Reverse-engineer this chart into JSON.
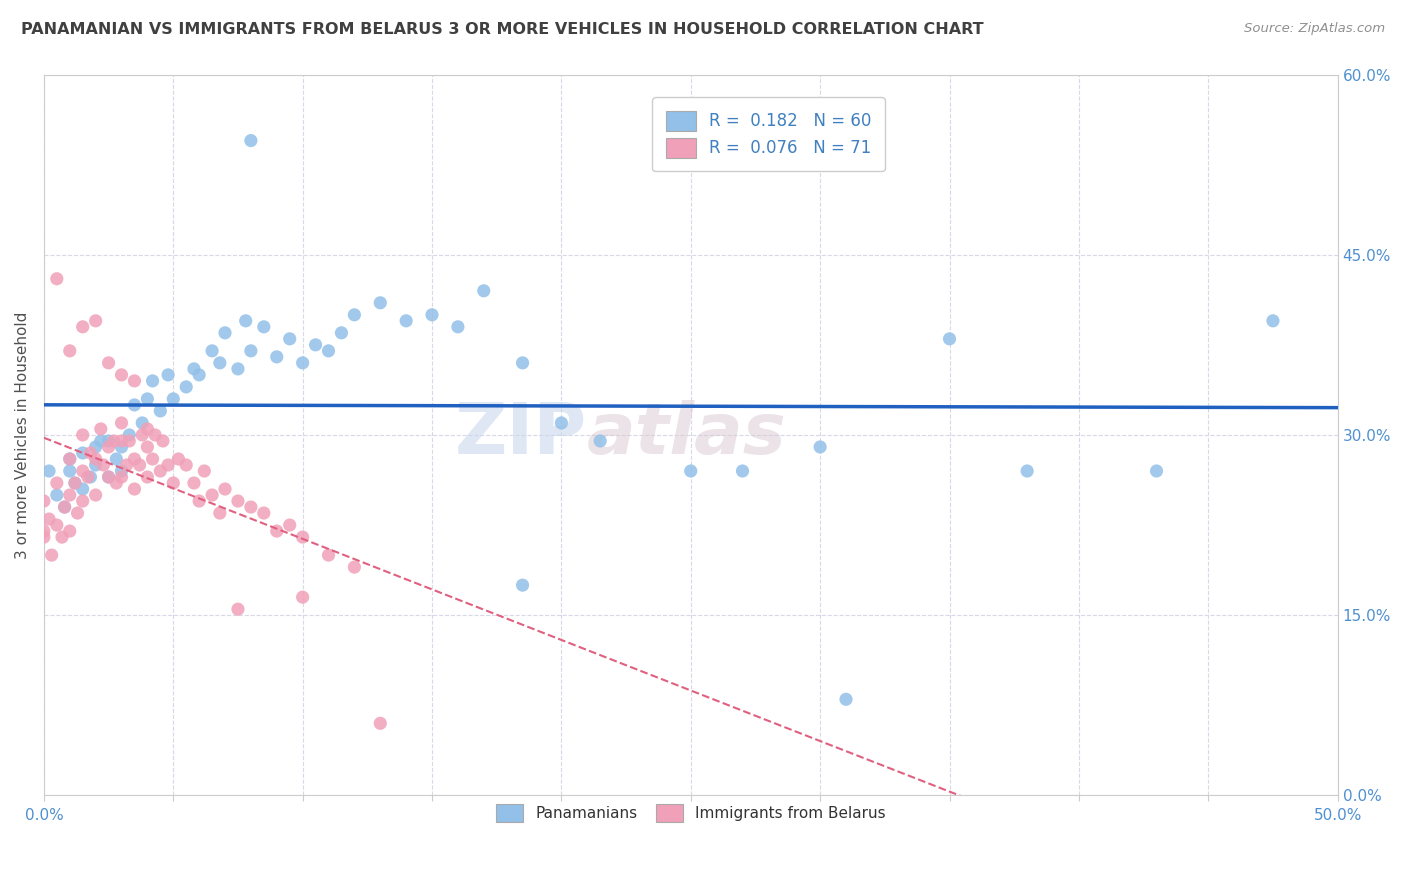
{
  "title": "PANAMANIAN VS IMMIGRANTS FROM BELARUS 3 OR MORE VEHICLES IN HOUSEHOLD CORRELATION CHART",
  "source": "Source: ZipAtlas.com",
  "ylabel": "3 or more Vehicles in Household",
  "watermark_line1": "ZIP",
  "watermark_line2": "atlas",
  "legend_labels_bottom": [
    "Panamanians",
    "Immigrants from Belarus"
  ],
  "xlim": [
    0.0,
    0.5
  ],
  "ylim": [
    0.0,
    0.6
  ],
  "blue_color": "#92c0e8",
  "pink_color": "#f0a0b8",
  "blue_line_color": "#2060c0",
  "pink_line_color": "#e06080",
  "grid_color": "#d8d8e8",
  "title_color": "#404040",
  "axis_color": "#5090d0",
  "legend_text_color": "#4080c0",
  "source_color": "#909090",
  "ylabel_color": "#505050",
  "panama_points_x": [
    0.002,
    0.005,
    0.008,
    0.01,
    0.01,
    0.012,
    0.015,
    0.015,
    0.018,
    0.02,
    0.02,
    0.022,
    0.025,
    0.025,
    0.028,
    0.03,
    0.03,
    0.033,
    0.035,
    0.038,
    0.04,
    0.042,
    0.045,
    0.048,
    0.05,
    0.055,
    0.058,
    0.06,
    0.065,
    0.068,
    0.07,
    0.075,
    0.078,
    0.08,
    0.085,
    0.09,
    0.095,
    0.1,
    0.105,
    0.11,
    0.115,
    0.12,
    0.13,
    0.14,
    0.15,
    0.16,
    0.17,
    0.185,
    0.2,
    0.215,
    0.25,
    0.27,
    0.3,
    0.35,
    0.38,
    0.185,
    0.31,
    0.43,
    0.475,
    0.08
  ],
  "panama_points_y": [
    0.27,
    0.25,
    0.24,
    0.27,
    0.28,
    0.26,
    0.255,
    0.285,
    0.265,
    0.29,
    0.275,
    0.295,
    0.265,
    0.295,
    0.28,
    0.27,
    0.29,
    0.3,
    0.325,
    0.31,
    0.33,
    0.345,
    0.32,
    0.35,
    0.33,
    0.34,
    0.355,
    0.35,
    0.37,
    0.36,
    0.385,
    0.355,
    0.395,
    0.37,
    0.39,
    0.365,
    0.38,
    0.36,
    0.375,
    0.37,
    0.385,
    0.4,
    0.41,
    0.395,
    0.4,
    0.39,
    0.42,
    0.36,
    0.31,
    0.295,
    0.27,
    0.27,
    0.29,
    0.38,
    0.27,
    0.175,
    0.08,
    0.27,
    0.395,
    0.545
  ],
  "belarus_points_x": [
    0.0,
    0.0,
    0.0,
    0.002,
    0.003,
    0.005,
    0.005,
    0.007,
    0.008,
    0.01,
    0.01,
    0.01,
    0.012,
    0.013,
    0.015,
    0.015,
    0.015,
    0.017,
    0.018,
    0.02,
    0.02,
    0.022,
    0.023,
    0.025,
    0.025,
    0.027,
    0.028,
    0.03,
    0.03,
    0.03,
    0.032,
    0.033,
    0.035,
    0.035,
    0.037,
    0.038,
    0.04,
    0.04,
    0.042,
    0.043,
    0.045,
    0.046,
    0.048,
    0.05,
    0.052,
    0.055,
    0.058,
    0.06,
    0.062,
    0.065,
    0.068,
    0.07,
    0.075,
    0.08,
    0.085,
    0.09,
    0.095,
    0.1,
    0.11,
    0.12,
    0.005,
    0.01,
    0.015,
    0.02,
    0.025,
    0.03,
    0.035,
    0.04,
    0.075,
    0.1,
    0.13
  ],
  "belarus_points_y": [
    0.22,
    0.215,
    0.245,
    0.23,
    0.2,
    0.225,
    0.26,
    0.215,
    0.24,
    0.22,
    0.25,
    0.28,
    0.26,
    0.235,
    0.245,
    0.27,
    0.3,
    0.265,
    0.285,
    0.25,
    0.28,
    0.305,
    0.275,
    0.265,
    0.29,
    0.295,
    0.26,
    0.265,
    0.295,
    0.31,
    0.275,
    0.295,
    0.255,
    0.28,
    0.275,
    0.3,
    0.265,
    0.29,
    0.28,
    0.3,
    0.27,
    0.295,
    0.275,
    0.26,
    0.28,
    0.275,
    0.26,
    0.245,
    0.27,
    0.25,
    0.235,
    0.255,
    0.245,
    0.24,
    0.235,
    0.22,
    0.225,
    0.215,
    0.2,
    0.19,
    0.43,
    0.37,
    0.39,
    0.395,
    0.36,
    0.35,
    0.345,
    0.305,
    0.155,
    0.165,
    0.06
  ]
}
